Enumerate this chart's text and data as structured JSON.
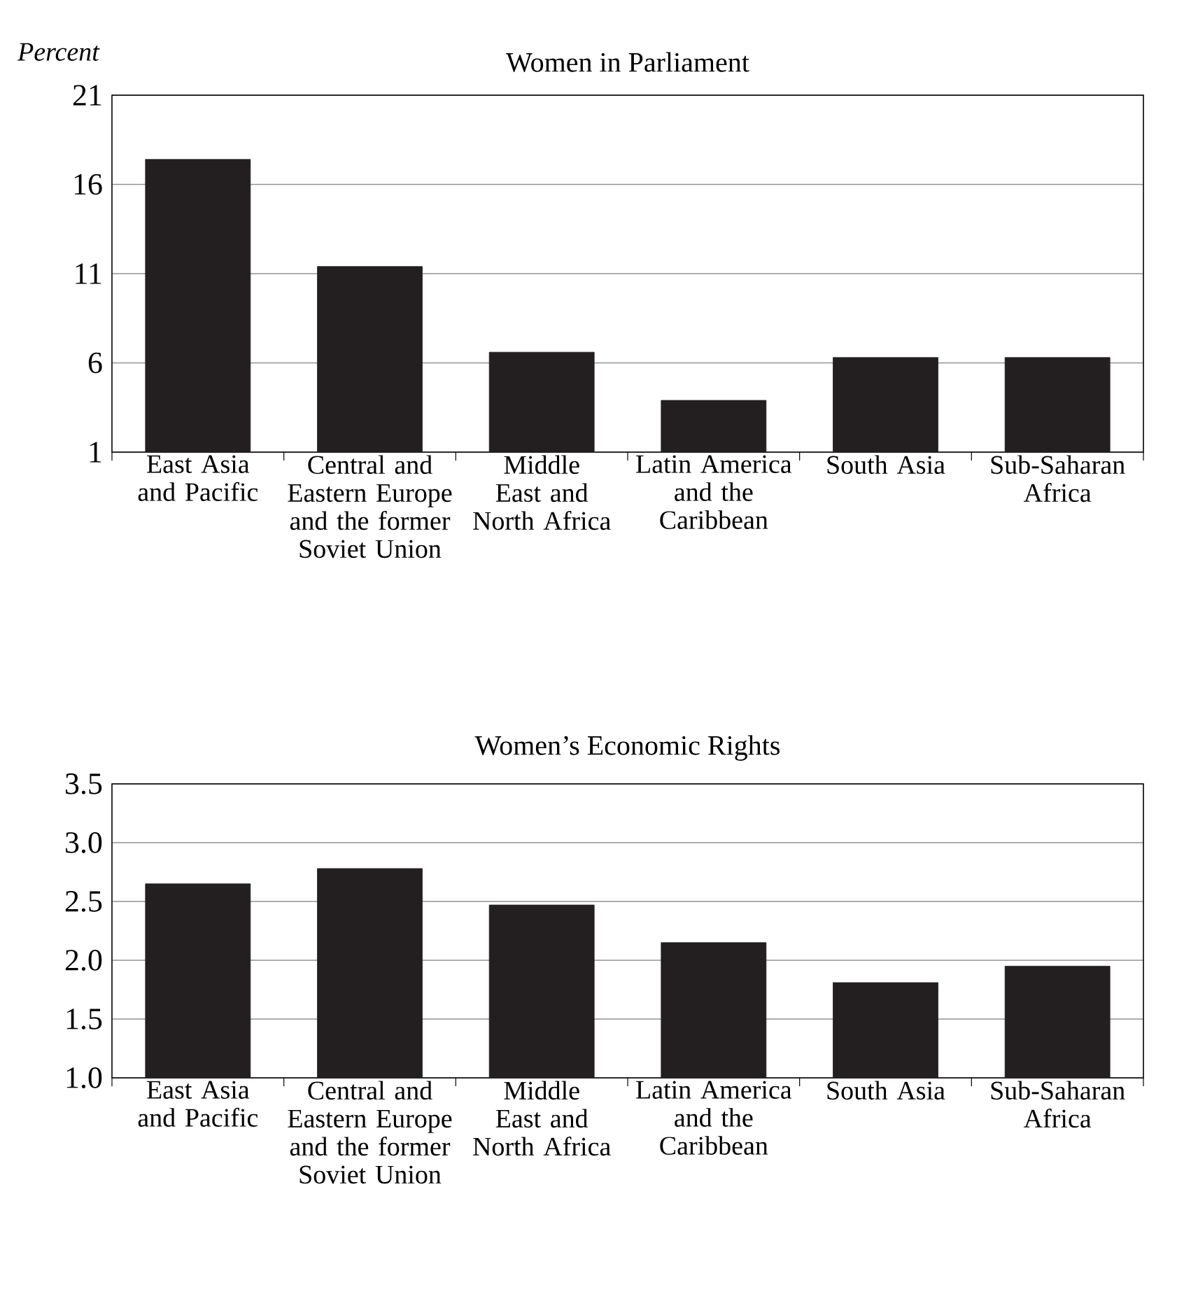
{
  "chart_data": [
    {
      "type": "bar",
      "title": "Women in Parliament",
      "ylabel": "Percent",
      "categories": [
        "East Asia and Pacific",
        "Central and Eastern Europe and the former Soviet Union",
        "Middle East and North Africa",
        "Latin America and the Caribbean",
        "South Asia",
        "Sub-Saharan Africa"
      ],
      "values": [
        17.4,
        11.4,
        6.6,
        3.9,
        6.3,
        6.3
      ],
      "color": "#231f20",
      "ylim": [
        1,
        21
      ],
      "yticks": [
        1,
        6,
        11,
        16,
        21
      ],
      "grid": "y"
    },
    {
      "type": "bar",
      "title": "Women’s Economic Rights",
      "categories": [
        "East Asia and Pacific",
        "Central and Eastern Europe and the former Soviet Union",
        "Middle East and North Africa",
        "Latin America and the Caribbean",
        "South Asia",
        "Sub-Saharan Africa"
      ],
      "values": [
        2.65,
        2.78,
        2.47,
        2.15,
        1.81,
        1.95
      ],
      "color": "#231f20",
      "ylim": [
        1.0,
        3.5
      ],
      "yticks": [
        {
          "value": 1.0,
          "label": "1.0"
        },
        {
          "value": 1.5,
          "label": "1.5"
        },
        {
          "value": 2.0,
          "label": "2.0"
        },
        {
          "value": 2.5,
          "label": "2.5"
        },
        {
          "value": 3.0,
          "label": "3.0"
        },
        {
          "value": 3.5,
          "label": "3.5"
        }
      ],
      "grid": "y"
    }
  ]
}
